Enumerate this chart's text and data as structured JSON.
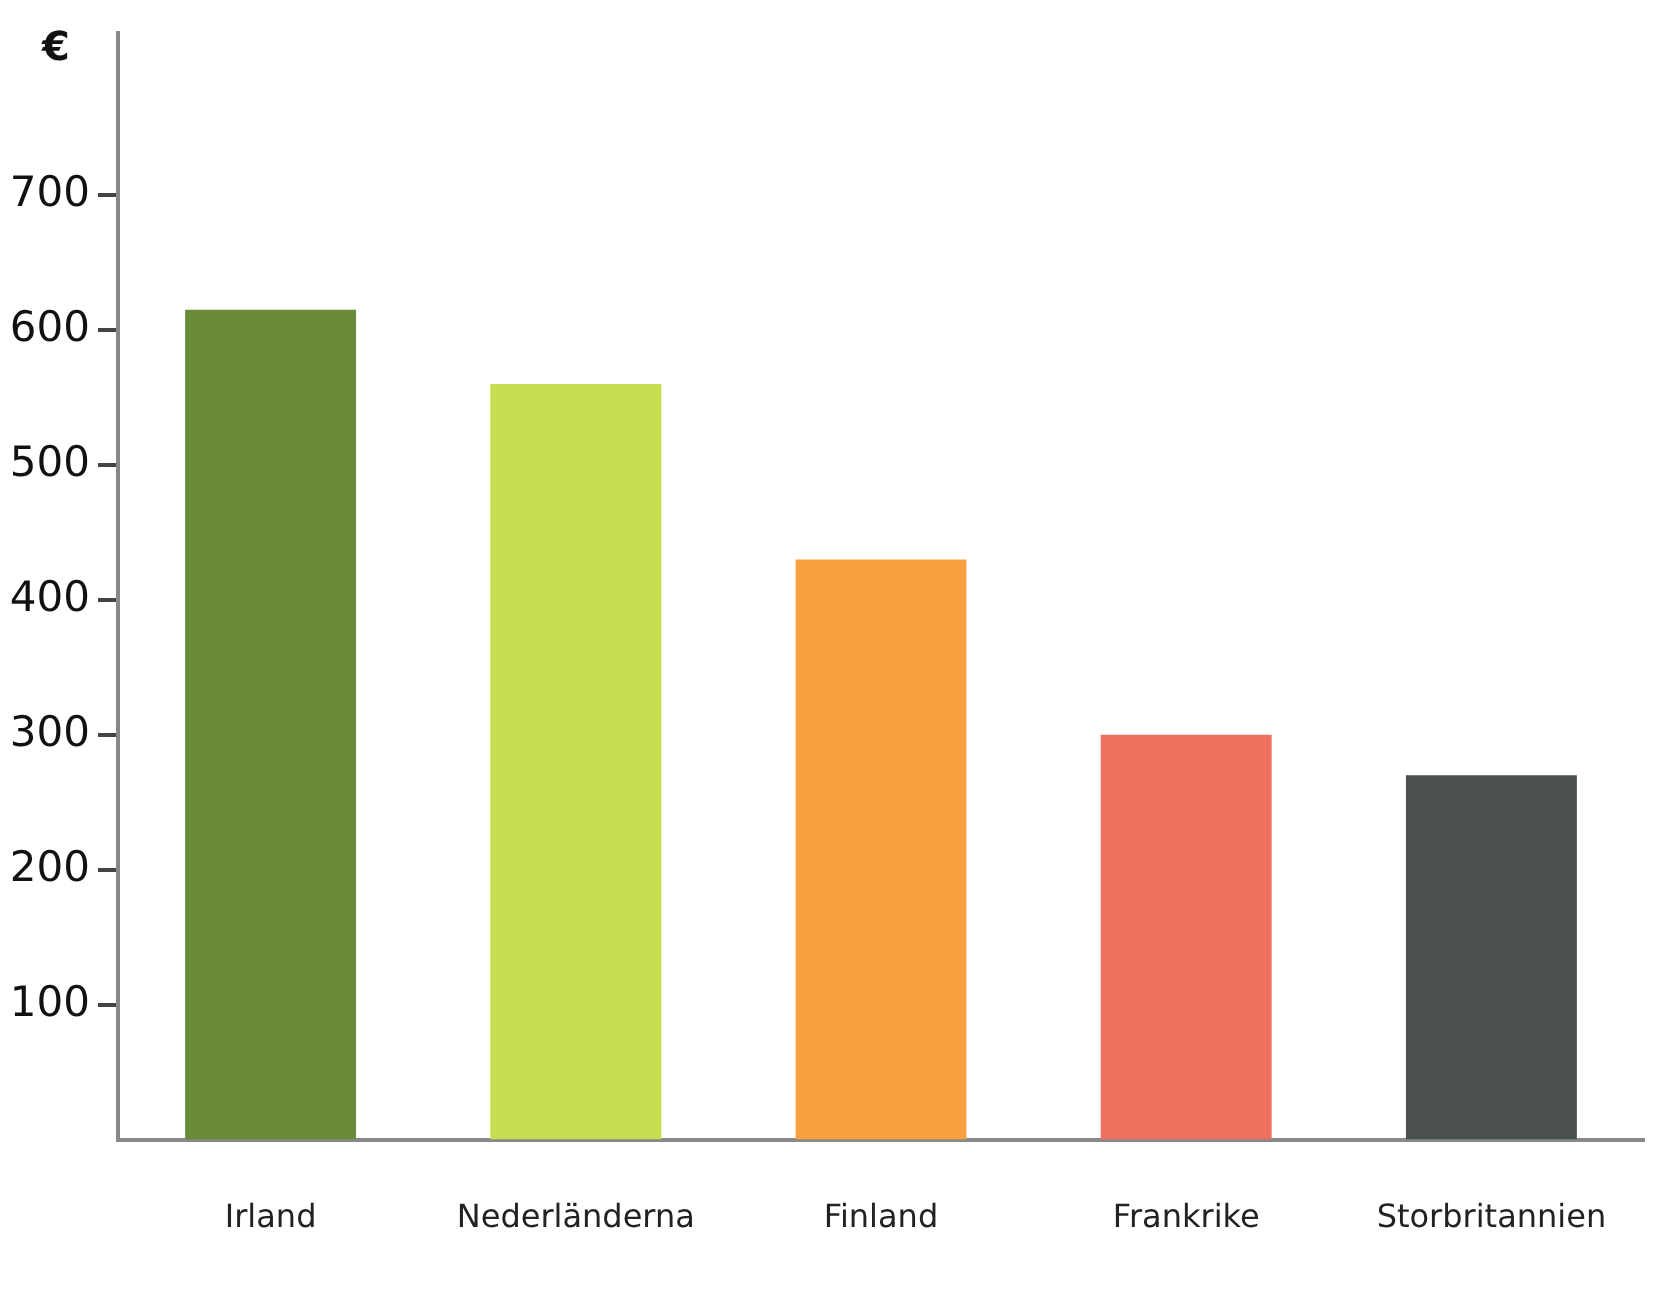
{
  "chart_data": {
    "type": "bar",
    "ylabel": "€",
    "categories": [
      "Irland",
      "Nederländerna",
      "Finland",
      "Frankrike",
      "Storbritannien"
    ],
    "values": [
      615,
      560,
      430,
      300,
      270
    ],
    "colors": [
      "#6a8c3a",
      "#c8dc50",
      "#f8a040",
      "#f07060",
      "#4a504c"
    ],
    "ylim": [
      0,
      820
    ],
    "yticks": [
      100,
      200,
      300,
      400,
      500,
      600,
      700
    ],
    "grid": false,
    "legend": false
  }
}
